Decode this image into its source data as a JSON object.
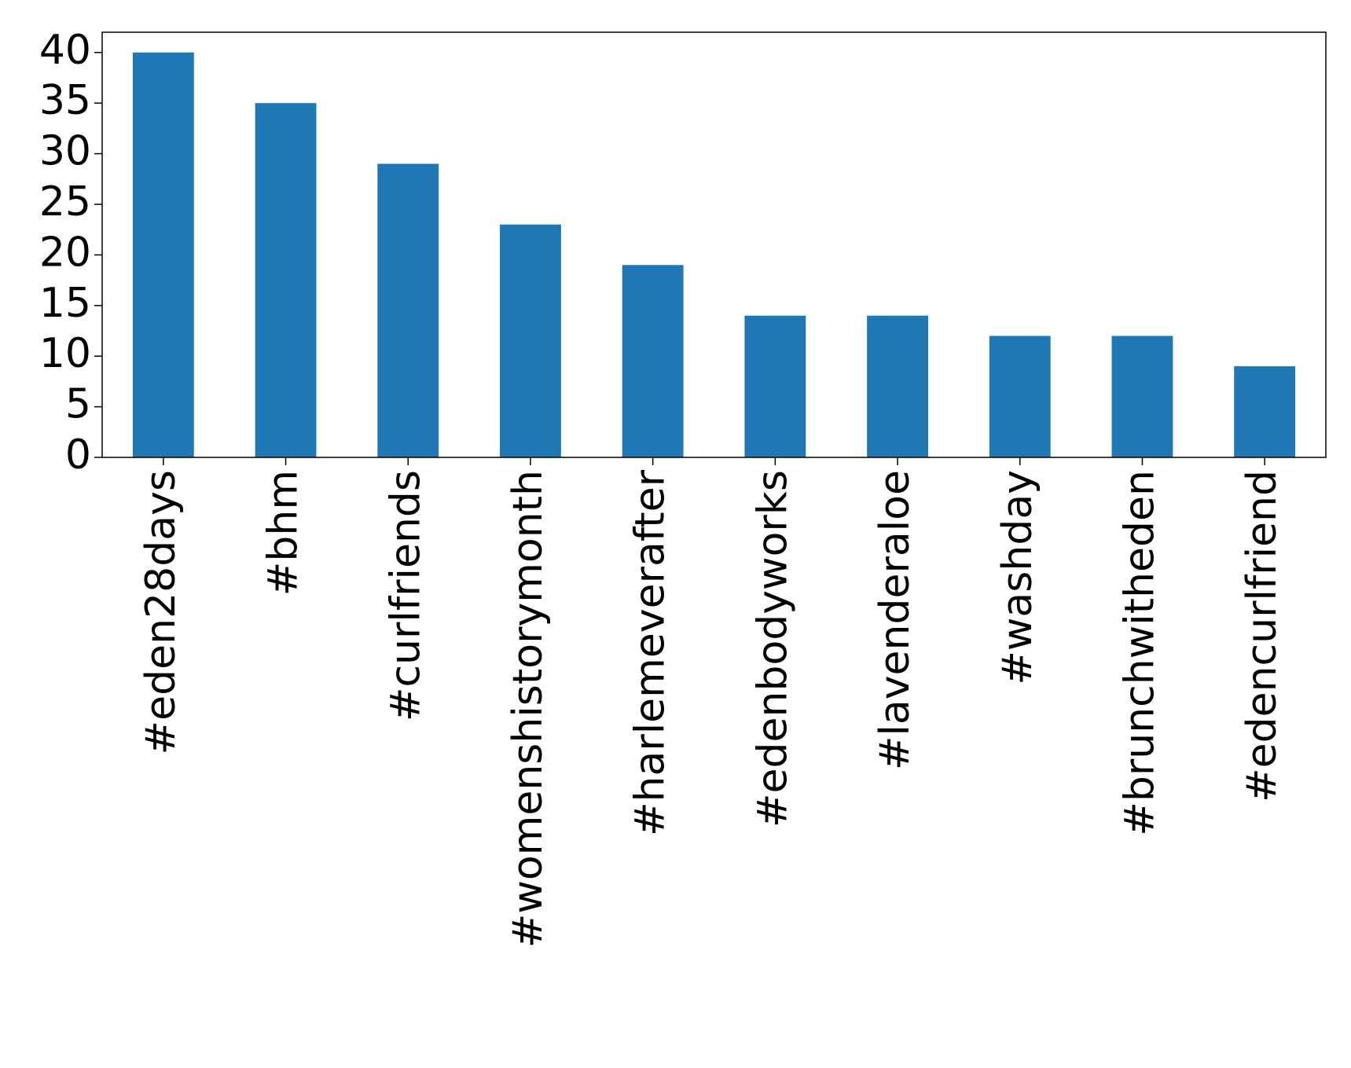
{
  "chart_data": {
    "type": "bar",
    "categories": [
      "#eden28days",
      "#bhm",
      "#curlfriends",
      "#womenshistorymonth",
      "#harlemeverafter",
      "#edenbodyworks",
      "#lavenderaloe",
      "#washday",
      "#brunchwitheden",
      "#edencurlfriend"
    ],
    "values": [
      40,
      35,
      29,
      23,
      19,
      14,
      14,
      12,
      12,
      9
    ],
    "color": "#1f77b4",
    "ylim": [
      0,
      42
    ],
    "yticks": [
      0,
      5,
      10,
      15,
      20,
      25,
      30,
      35,
      40
    ],
    "grid": false
  }
}
